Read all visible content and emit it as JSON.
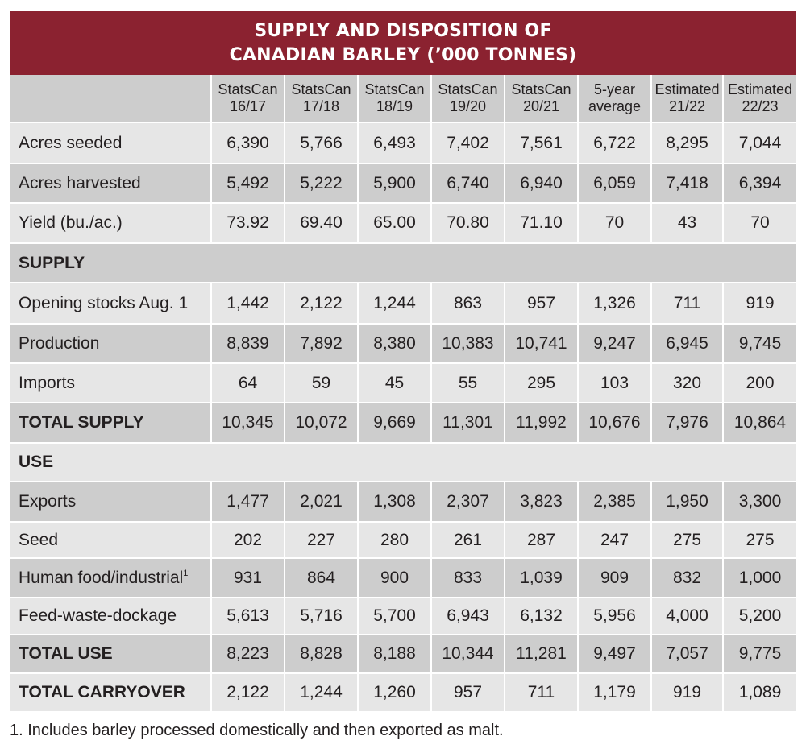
{
  "title": {
    "line1": "SUPPLY AND DISPOSITION OF",
    "line2": "CANADIAN BARLEY (’000 TONNES)"
  },
  "columns": [
    {
      "line1": "StatsCan",
      "line2": "16/17"
    },
    {
      "line1": "StatsCan",
      "line2": "17/18"
    },
    {
      "line1": "StatsCan",
      "line2": "18/19"
    },
    {
      "line1": "StatsCan",
      "line2": "19/20"
    },
    {
      "line1": "StatsCan",
      "line2": "20/21"
    },
    {
      "line1": "5-year",
      "line2": "average"
    },
    {
      "line1": "Estimated",
      "line2": "21/22"
    },
    {
      "line1": "Estimated",
      "line2": "22/23"
    }
  ],
  "rows": {
    "acres_seeded": {
      "label": "Acres seeded",
      "values": [
        "6,390",
        "5,766",
        "6,493",
        "7,402",
        "7,561",
        "6,722",
        "8,295",
        "7,044"
      ]
    },
    "acres_harvested": {
      "label": "Acres harvested",
      "values": [
        "5,492",
        "5,222",
        "5,900",
        "6,740",
        "6,940",
        "6,059",
        "7,418",
        "6,394"
      ]
    },
    "yield": {
      "label": "Yield (bu./ac.)",
      "values": [
        "73.92",
        "69.40",
        "65.00",
        "70.80",
        "71.10",
        "70",
        "43",
        "70"
      ]
    },
    "supply_heading": {
      "label": "SUPPLY"
    },
    "opening_stocks": {
      "label": "Opening stocks Aug. 1",
      "values": [
        "1,442",
        "2,122",
        "1,244",
        "863",
        "957",
        "1,326",
        "711",
        "919"
      ]
    },
    "production": {
      "label": "Production",
      "values": [
        "8,839",
        "7,892",
        "8,380",
        "10,383",
        "10,741",
        "9,247",
        "6,945",
        "9,745"
      ]
    },
    "imports": {
      "label": "Imports",
      "values": [
        "64",
        "59",
        "45",
        "55",
        "295",
        "103",
        "320",
        "200"
      ]
    },
    "total_supply": {
      "label": "TOTAL SUPPLY",
      "values": [
        "10,345",
        "10,072",
        "9,669",
        "11,301",
        "11,992",
        "10,676",
        "7,976",
        "10,864"
      ]
    },
    "use_heading": {
      "label": "USE"
    },
    "exports": {
      "label": "Exports",
      "values": [
        "1,477",
        "2,021",
        "1,308",
        "2,307",
        "3,823",
        "2,385",
        "1,950",
        "3,300"
      ]
    },
    "seed": {
      "label": "Seed",
      "values": [
        "202",
        "227",
        "280",
        "261",
        "287",
        "247",
        "275",
        "275"
      ]
    },
    "human_food": {
      "label": "Human food/industrial",
      "footnote_mark": "1",
      "values": [
        "931",
        "864",
        "900",
        "833",
        "1,039",
        "909",
        "832",
        "1,000"
      ]
    },
    "feed_waste": {
      "label": "Feed-waste-dockage",
      "values": [
        "5,613",
        "5,716",
        "5,700",
        "6,943",
        "6,132",
        "5,956",
        "4,000",
        "5,200"
      ]
    },
    "total_use": {
      "label": "TOTAL USE",
      "values": [
        "8,223",
        "8,828",
        "8,188",
        "10,344",
        "11,281",
        "9,497",
        "7,057",
        "9,775"
      ]
    },
    "total_carryover": {
      "label": "TOTAL CARRYOVER",
      "values": [
        "2,122",
        "1,244",
        "1,260",
        "957",
        "711",
        "1,179",
        "919",
        "1,089"
      ]
    }
  },
  "footnote": "1. Includes barley processed domestically and then exported as malt.",
  "colors": {
    "title_bg": "#8b2230",
    "row_light": "#e6e6e6",
    "row_dark": "#cdcdcd"
  }
}
